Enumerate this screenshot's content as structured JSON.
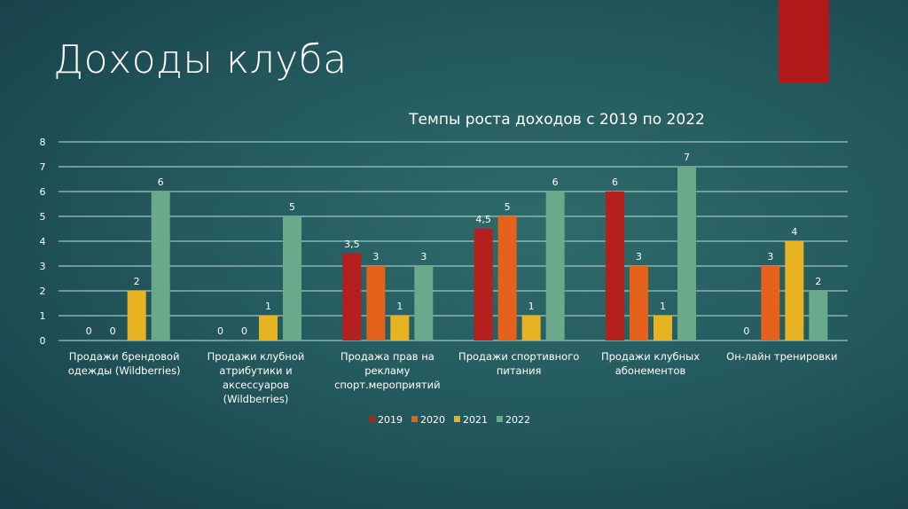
{
  "slide": {
    "title": "Доходы клуба",
    "accent_color": "#b0181a"
  },
  "chart_data": {
    "type": "bar",
    "title": "Темпы роста доходов с 2019 по 2022",
    "categories": [
      [
        "Продажи брендовой",
        "одежды (Wildberries)"
      ],
      [
        "Продажи клубной",
        "атрибутики и",
        "аксессуаров",
        "(Wildberries)"
      ],
      [
        "Продажа прав на",
        "рекламу",
        "спорт.мероприятий"
      ],
      [
        "Продажи спортивного",
        "питания"
      ],
      [
        "Продажи клубных",
        "абонементов"
      ],
      [
        "Он-лайн тренировки"
      ]
    ],
    "series": [
      {
        "name": "2019",
        "color": "#b3201e",
        "values": [
          0,
          0,
          3.5,
          4.5,
          6,
          null
        ],
        "labels": [
          "0",
          "0",
          "3,5",
          "4,5",
          "6",
          ""
        ]
      },
      {
        "name": "2020",
        "color": "#e4621b",
        "values": [
          0,
          0,
          3,
          5,
          3,
          3
        ],
        "labels": [
          "0",
          "0",
          "3",
          "5",
          "3",
          "3"
        ]
      },
      {
        "name": "2021",
        "color": "#e8b322",
        "values": [
          2,
          1,
          1,
          1,
          1,
          4
        ],
        "labels": [
          "2",
          "1",
          "1",
          "1",
          "1",
          "4"
        ]
      },
      {
        "name": "2022",
        "color": "#6aaa8b",
        "values": [
          6,
          5,
          3,
          6,
          7,
          2
        ],
        "labels": [
          "6",
          "5",
          "3",
          "6",
          "7",
          "2"
        ]
      }
    ],
    "extra_labels": [
      {
        "category": 5,
        "series": 0,
        "text": "0"
      }
    ],
    "ylim": [
      0,
      8
    ],
    "yticks": [
      "0",
      "1",
      "2",
      "3",
      "4",
      "5",
      "6",
      "7",
      "8"
    ],
    "grid": true,
    "legend": "bottom"
  }
}
